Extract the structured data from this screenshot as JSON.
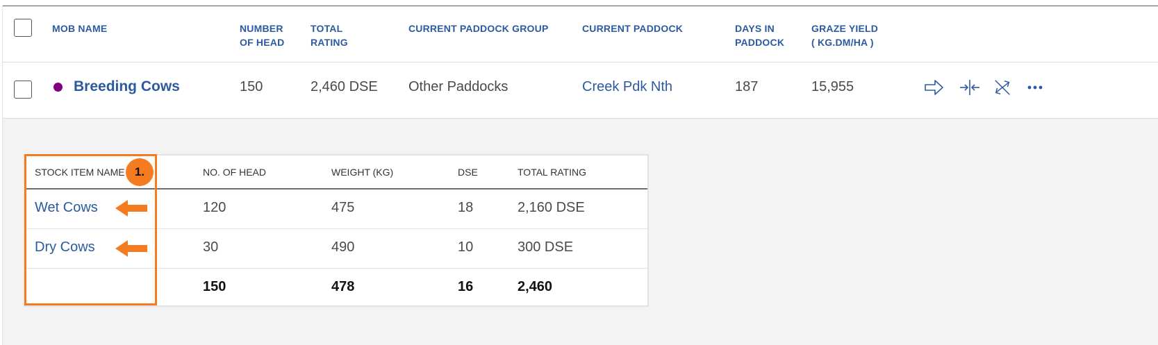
{
  "table": {
    "headers": {
      "mob_name": "MOB NAME",
      "number_of_head_l1": "NUMBER",
      "number_of_head_l2": "OF HEAD",
      "total_rating_l1": "TOTAL",
      "total_rating_l2": "RATING",
      "paddock_group": "CURRENT PADDOCK GROUP",
      "paddock": "CURRENT PADDOCK",
      "days_l1": "DAYS IN",
      "days_l2": "PADDOCK",
      "graze_l1": "GRAZE YIELD",
      "graze_l2": "( KG.DM/HA )"
    },
    "row": {
      "mob_name": "Breeding Cows",
      "mob_color": "#800080",
      "number_of_head": "150",
      "total_rating": "2,460 DSE",
      "paddock_group": "Other Paddocks",
      "paddock": "Creek Pdk Nth",
      "days_in_paddock": "187",
      "graze_yield": "15,955",
      "actions": [
        "move-arrow-icon",
        "merge-icon",
        "split-icon",
        "more-icon"
      ]
    }
  },
  "stock_items": {
    "headers": {
      "name": "STOCK ITEM NAME",
      "head": "NO. OF HEAD",
      "weight": "WEIGHT (KG)",
      "dse": "DSE",
      "rating": "TOTAL RATING"
    },
    "rows": [
      {
        "name": "Wet Cows",
        "head": "120",
        "weight": "475",
        "dse": "18",
        "rating": "2,160 DSE"
      },
      {
        "name": "Dry Cows",
        "head": "30",
        "weight": "490",
        "dse": "10",
        "rating": "300 DSE"
      }
    ],
    "totals": {
      "head": "150",
      "weight": "478",
      "dse": "16",
      "rating": "2,460"
    }
  },
  "annotation": {
    "badge_label": "1.",
    "color": "#f47b20"
  }
}
